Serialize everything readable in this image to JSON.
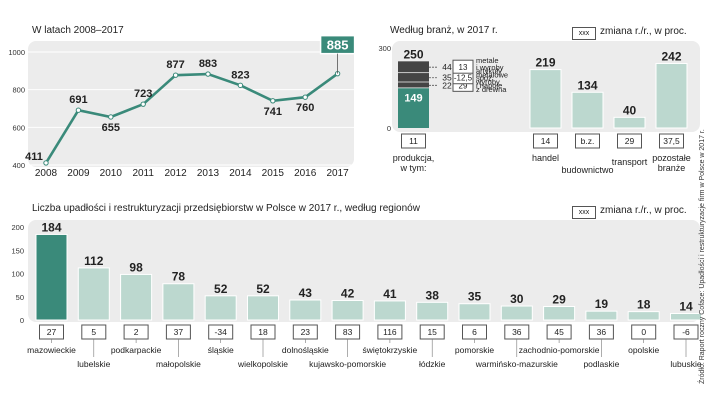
{
  "line_panel": {
    "title": "W latach 2008–2017"
  },
  "branch_panel": {
    "title": "Według branż, w 2017 r.",
    "legend_box": "xxx",
    "legend_text": "zmiana r./r., w proc."
  },
  "regions_panel": {
    "title": "Liczba upadłości i restrukturyzacji  przedsiębiorstw w Polsce w 2017 r., według regionów",
    "legend_box": "xxx",
    "legend_text": "zmiana r./r., w proc."
  },
  "source": "Źródło: Raport roczny Coface: Upadłości i restrukturyzacje firm w Polsce w 2017 r.",
  "colors": {
    "accent": "#3a8a7a",
    "light": "#bcd8cf",
    "dark": "#444444",
    "panel": "#ececec"
  },
  "chart_data": [
    {
      "type": "line",
      "title": "W latach 2008–2017",
      "x": [
        "2008",
        "2009",
        "2010",
        "2011",
        "2012",
        "2013",
        "2014",
        "2015",
        "2016",
        "2017"
      ],
      "values": [
        411,
        691,
        655,
        723,
        877,
        883,
        823,
        741,
        760,
        885
      ],
      "ylim": [
        400,
        1000
      ],
      "yticks": [
        400,
        600,
        800,
        1000
      ],
      "highlight_last": true
    },
    {
      "type": "bar",
      "title": "Według branż, w 2017 r.",
      "categories": [
        "produkcja, w tym:",
        "handel",
        "budownictwo",
        "transport",
        "pozostałe branże"
      ],
      "values": [
        250,
        219,
        134,
        40,
        242
      ],
      "change_pct": [
        "11",
        "14",
        "b.z.",
        "29",
        "37,5"
      ],
      "ylim": [
        0,
        300
      ],
      "yticks": [
        0,
        300
      ],
      "production_breakdown": [
        {
          "name": "metale i wyroby metalowe",
          "name_lines": [
            "metale",
            "i wyroby",
            "metalowe"
          ],
          "value": 44,
          "change_pct": "13"
        },
        {
          "name": "artykuły spoż. i napoje",
          "name_lines": [
            "artykuły",
            "spoż.",
            "i napoje"
          ],
          "value": 35,
          "change_pct": "-12,5"
        },
        {
          "name": "wyroby z drewna",
          "name_lines": [
            "wyroby",
            "z drewna"
          ],
          "value": 22,
          "change_pct": "29"
        }
      ],
      "production_other": 149,
      "label_lines": [
        [
          "produkcja,",
          "w tym:"
        ],
        [
          "handel"
        ],
        [
          "budownictwo"
        ],
        [
          "transport"
        ],
        [
          "pozostałe",
          "branże"
        ]
      ]
    },
    {
      "type": "bar",
      "title": "Liczba upadłości i restrukturyzacji  przedsiębiorstw w Polsce w 2017 r., według regionów",
      "categories": [
        "mazowieckie",
        "lubelskie",
        "podkarpackie",
        "małopolskie",
        "śląskie",
        "wielkopolskie",
        "dolnośląskie",
        "kujawsko-pomorskie",
        "świętokrzyskie",
        "łódzkie",
        "pomorskie",
        "warmińsko-mazurskie",
        "zachodnio-pomorskie",
        "podlaskie",
        "opolskie",
        "lubuskie"
      ],
      "values": [
        184,
        112,
        98,
        78,
        52,
        52,
        43,
        42,
        41,
        38,
        35,
        30,
        29,
        19,
        18,
        14
      ],
      "change_pct": [
        "27",
        "5",
        "2",
        "37",
        "-34",
        "18",
        "23",
        "83",
        "116",
        "15",
        "6",
        "36",
        "45",
        "36",
        "0",
        "-6"
      ],
      "ylim": [
        0,
        200
      ],
      "yticks": [
        0,
        50,
        100,
        150,
        200
      ]
    }
  ]
}
